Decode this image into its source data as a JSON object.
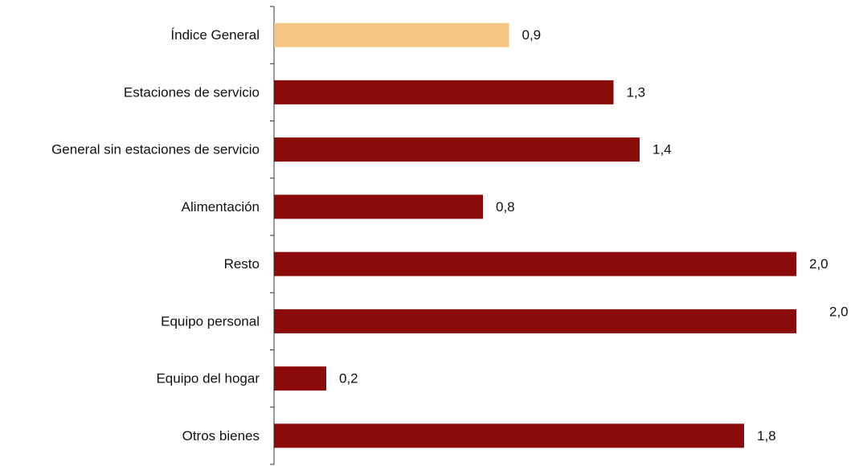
{
  "chart_data": {
    "type": "bar",
    "orientation": "horizontal",
    "categories": [
      "Índice General",
      "Estaciones de servicio",
      "General sin estaciones de servicio",
      "Alimentación",
      "Resto",
      "Equipo personal",
      "Equipo del hogar",
      "Otros bienes"
    ],
    "values": [
      0.9,
      1.3,
      1.4,
      0.8,
      2.0,
      2.0,
      0.2,
      1.8
    ],
    "value_labels": [
      "0,9",
      "1,3",
      "1,4",
      "0,8",
      "2,0",
      "2,0",
      "0,2",
      "1,8"
    ],
    "xlim": [
      0,
      2.0
    ],
    "grid": false,
    "legend": "none",
    "colors": {
      "highlight": "#F5C584",
      "bar": "#8B0A0A",
      "axis": "#333333"
    },
    "highlight_index": 0
  }
}
